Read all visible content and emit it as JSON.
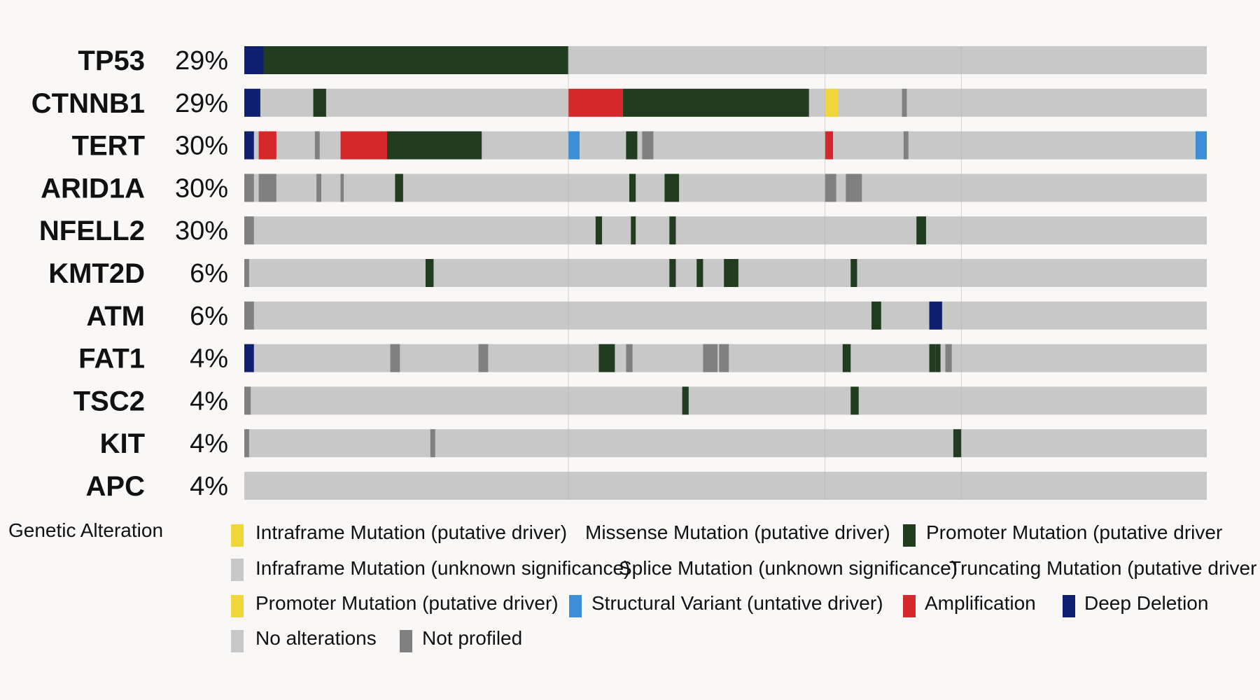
{
  "colors": {
    "background": "#f9f8f6",
    "no_alteration": "#c8c8c8",
    "not_profiled": "#808080",
    "promoter_driver": "#213c1e",
    "amplification": "#d4282a",
    "deep_deletion": "#102070",
    "structural_variant": "#3a8fd6",
    "inframe_driver": "#f1d63a"
  },
  "chart_data": {
    "type": "oncoprint",
    "n_samples": 600,
    "genes": [
      {
        "name": "TP53",
        "percent": "29%",
        "alterations": [
          {
            "start": 0,
            "end": 12,
            "type": "deep_deletion"
          },
          {
            "start": 12,
            "end": 202,
            "type": "promoter_driver"
          }
        ]
      },
      {
        "name": "CTNNB1",
        "percent": "29%",
        "alterations": [
          {
            "start": 0,
            "end": 10,
            "type": "deep_deletion"
          },
          {
            "start": 43,
            "end": 51,
            "type": "promoter_driver"
          },
          {
            "start": 202,
            "end": 236,
            "type": "amplification"
          },
          {
            "start": 236,
            "end": 352,
            "type": "promoter_driver"
          },
          {
            "start": 362,
            "end": 370,
            "type": "inframe_driver"
          },
          {
            "start": 410,
            "end": 413,
            "type": "not_profiled"
          }
        ]
      },
      {
        "name": "TERT",
        "percent": "30%",
        "alterations": [
          {
            "start": 0,
            "end": 6,
            "type": "deep_deletion"
          },
          {
            "start": 9,
            "end": 20,
            "type": "amplification"
          },
          {
            "start": 44,
            "end": 47,
            "type": "not_profiled"
          },
          {
            "start": 60,
            "end": 89,
            "type": "amplification"
          },
          {
            "start": 89,
            "end": 148,
            "type": "promoter_driver"
          },
          {
            "start": 202,
            "end": 209,
            "type": "structural_variant"
          },
          {
            "start": 238,
            "end": 245,
            "type": "promoter_driver"
          },
          {
            "start": 248,
            "end": 255,
            "type": "not_profiled"
          },
          {
            "start": 362,
            "end": 367,
            "type": "amplification"
          },
          {
            "start": 411,
            "end": 414,
            "type": "not_profiled"
          },
          {
            "start": 593,
            "end": 600,
            "type": "structural_variant"
          }
        ]
      },
      {
        "name": "ARID1A",
        "percent": "30%",
        "alterations": [
          {
            "start": 0,
            "end": 6,
            "type": "not_profiled"
          },
          {
            "start": 9,
            "end": 20,
            "type": "not_profiled"
          },
          {
            "start": 45,
            "end": 48,
            "type": "not_profiled"
          },
          {
            "start": 60,
            "end": 62,
            "type": "not_profiled"
          },
          {
            "start": 94,
            "end": 99,
            "type": "promoter_driver"
          },
          {
            "start": 240,
            "end": 244,
            "type": "promoter_driver"
          },
          {
            "start": 262,
            "end": 271,
            "type": "promoter_driver"
          },
          {
            "start": 362,
            "end": 369,
            "type": "not_profiled"
          },
          {
            "start": 375,
            "end": 385,
            "type": "not_profiled"
          }
        ]
      },
      {
        "name": "NFELL2",
        "percent": "30%",
        "alterations": [
          {
            "start": 0,
            "end": 6,
            "type": "not_profiled"
          },
          {
            "start": 219,
            "end": 223,
            "type": "promoter_driver"
          },
          {
            "start": 241,
            "end": 244,
            "type": "promoter_driver"
          },
          {
            "start": 265,
            "end": 269,
            "type": "promoter_driver"
          },
          {
            "start": 419,
            "end": 425,
            "type": "promoter_driver"
          }
        ]
      },
      {
        "name": "KMT2D",
        "percent": "6%",
        "alterations": [
          {
            "start": 0,
            "end": 3,
            "type": "not_profiled"
          },
          {
            "start": 113,
            "end": 118,
            "type": "promoter_driver"
          },
          {
            "start": 265,
            "end": 269,
            "type": "promoter_driver"
          },
          {
            "start": 282,
            "end": 286,
            "type": "promoter_driver"
          },
          {
            "start": 299,
            "end": 308,
            "type": "promoter_driver"
          },
          {
            "start": 378,
            "end": 382,
            "type": "promoter_driver"
          }
        ]
      },
      {
        "name": "ATM",
        "percent": "6%",
        "alterations": [
          {
            "start": 0,
            "end": 6,
            "type": "not_profiled"
          },
          {
            "start": 391,
            "end": 397,
            "type": "promoter_driver"
          },
          {
            "start": 427,
            "end": 435,
            "type": "deep_deletion"
          }
        ]
      },
      {
        "name": "FAT1",
        "percent": "4%",
        "alterations": [
          {
            "start": 0,
            "end": 6,
            "type": "deep_deletion"
          },
          {
            "start": 91,
            "end": 97,
            "type": "not_profiled"
          },
          {
            "start": 146,
            "end": 152,
            "type": "not_profiled"
          },
          {
            "start": 221,
            "end": 231,
            "type": "promoter_driver"
          },
          {
            "start": 238,
            "end": 242,
            "type": "not_profiled"
          },
          {
            "start": 286,
            "end": 295,
            "type": "not_profiled"
          },
          {
            "start": 296,
            "end": 302,
            "type": "not_profiled"
          },
          {
            "start": 373,
            "end": 378,
            "type": "promoter_driver"
          },
          {
            "start": 427,
            "end": 431,
            "type": "promoter_driver"
          },
          {
            "start": 431,
            "end": 434,
            "type": "promoter_driver"
          },
          {
            "start": 437,
            "end": 441,
            "type": "not_profiled"
          }
        ]
      },
      {
        "name": "TSC2",
        "percent": "4%",
        "alterations": [
          {
            "start": 0,
            "end": 4,
            "type": "not_profiled"
          },
          {
            "start": 273,
            "end": 277,
            "type": "promoter_driver"
          },
          {
            "start": 378,
            "end": 383,
            "type": "promoter_driver"
          }
        ]
      },
      {
        "name": "KIT",
        "percent": "4%",
        "alterations": [
          {
            "start": 0,
            "end": 3,
            "type": "not_profiled"
          },
          {
            "start": 116,
            "end": 119,
            "type": "not_profiled"
          },
          {
            "start": 442,
            "end": 447,
            "type": "promoter_driver"
          }
        ]
      },
      {
        "name": "APC",
        "percent": "4%",
        "alterations": []
      }
    ],
    "legend": {
      "title": "Genetic Alteration",
      "items": [
        {
          "label": "Intraframe Mutation (putative driver)",
          "color": "#f1d63a"
        },
        {
          "label": "Missense Mutation (putative driver)",
          "color": ""
        },
        {
          "label": "Promoter Mutation (putative driver",
          "color": "#213c1e"
        },
        {
          "label": "Infraframe Mutation (unknown significance)",
          "color": "#c8c8c8"
        },
        {
          "label": "Splice Mutation (unknown significance)",
          "color": ""
        },
        {
          "label": "Truncating Mutation (putative driver",
          "color": ""
        },
        {
          "label": "Promoter Mutation (putative driver)",
          "color": "#f1d63a"
        },
        {
          "label": "Structural Variant (untative driver)",
          "color": "#3a8fd6"
        },
        {
          "label": "Amplification",
          "color": "#d4282a"
        },
        {
          "label": "Deep Deletion",
          "color": "#102070"
        },
        {
          "label": "No alterations",
          "color": "#c8c8c8"
        },
        {
          "label": "Not profiled",
          "color": "#808080"
        }
      ]
    }
  }
}
